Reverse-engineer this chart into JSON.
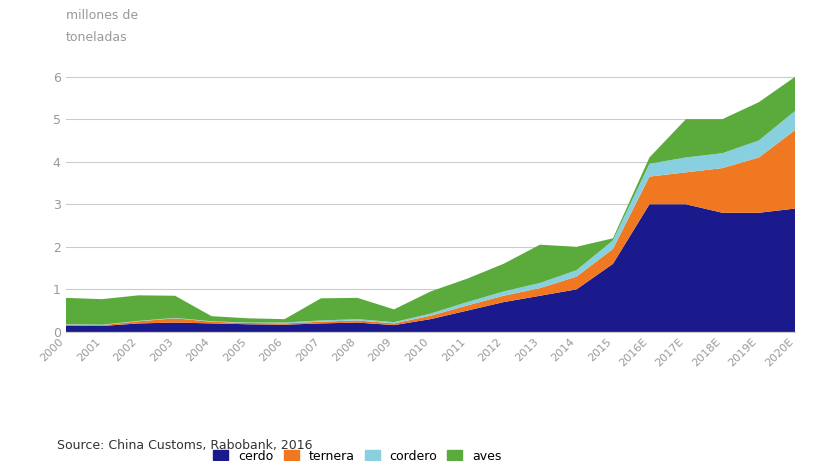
{
  "years": [
    "2000",
    "2001",
    "2002",
    "2003",
    "2004",
    "2005",
    "2006",
    "2007",
    "2008",
    "2009",
    "2010",
    "2011",
    "2012",
    "2013",
    "2014",
    "2015",
    "2016E",
    "2017E",
    "2018E",
    "2019E",
    "2020E"
  ],
  "cerdo": [
    0.15,
    0.14,
    0.2,
    0.22,
    0.2,
    0.18,
    0.17,
    0.2,
    0.22,
    0.16,
    0.3,
    0.5,
    0.7,
    0.85,
    1.0,
    1.6,
    3.0,
    3.0,
    2.8,
    2.8,
    2.9
  ],
  "ternera": [
    0.02,
    0.02,
    0.05,
    0.1,
    0.04,
    0.03,
    0.03,
    0.04,
    0.05,
    0.04,
    0.08,
    0.12,
    0.15,
    0.18,
    0.3,
    0.35,
    0.65,
    0.75,
    1.05,
    1.3,
    1.85
  ],
  "cordero": [
    0.01,
    0.01,
    0.01,
    0.01,
    0.01,
    0.01,
    0.02,
    0.03,
    0.03,
    0.03,
    0.05,
    0.08,
    0.1,
    0.12,
    0.15,
    0.2,
    0.3,
    0.35,
    0.35,
    0.4,
    0.45
  ],
  "aves": [
    0.62,
    0.6,
    0.6,
    0.52,
    0.12,
    0.1,
    0.08,
    0.52,
    0.5,
    0.3,
    0.52,
    0.55,
    0.65,
    0.9,
    0.55,
    0.05,
    0.15,
    0.9,
    0.8,
    0.9,
    0.8
  ],
  "colors": {
    "cerdo": "#1a1a8c",
    "ternera": "#f07820",
    "cordero": "#88d0e0",
    "aves": "#5aab3c"
  },
  "ylabel_line1": "millones de",
  "ylabel_line2": "toneladas",
  "ylim": [
    0,
    6.5
  ],
  "yticks": [
    0,
    1,
    2,
    3,
    4,
    5,
    6
  ],
  "source": "Source: China Customs, Rabobank, 2016",
  "background_color": "#ffffff",
  "grid_color": "#cccccc"
}
